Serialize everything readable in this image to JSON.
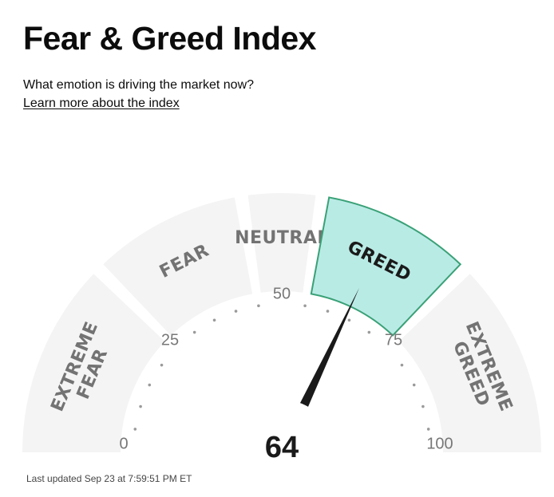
{
  "title": "Fear & Greed Index",
  "subtitle": "What emotion is driving the market now?",
  "learn_more": "Learn more about the index",
  "gauge": {
    "score": 64,
    "score_text": "64",
    "segments": [
      {
        "label_lines": [
          "EXTREME",
          "FEAR"
        ],
        "from": 0,
        "to": 25,
        "active": false
      },
      {
        "label_lines": [
          "FEAR"
        ],
        "from": 25,
        "to": 45,
        "active": false
      },
      {
        "label_lines": [
          "NEUTRAL"
        ],
        "from": 45,
        "to": 55,
        "active": false
      },
      {
        "label_lines": [
          "GREED"
        ],
        "from": 55,
        "to": 75,
        "active": true
      },
      {
        "label_lines": [
          "EXTREME",
          "GREED"
        ],
        "from": 75,
        "to": 100,
        "active": false
      }
    ],
    "ticks": [
      {
        "value": 0,
        "text": "0"
      },
      {
        "value": 25,
        "text": "25"
      },
      {
        "value": 50,
        "text": "50"
      },
      {
        "value": 75,
        "text": "75"
      },
      {
        "value": 100,
        "text": "100"
      }
    ],
    "colors": {
      "segment_fill": "#f4f4f4",
      "active_fill": "#b9ebe5",
      "active_stroke": "#3aa177",
      "needle": "#1a1a1a",
      "dots": "#9a9a9a",
      "segment_text": "#737373",
      "active_text": "#1a1a1a"
    }
  },
  "last_updated": "Last updated Sep 23 at 7:59:51 PM ET"
}
